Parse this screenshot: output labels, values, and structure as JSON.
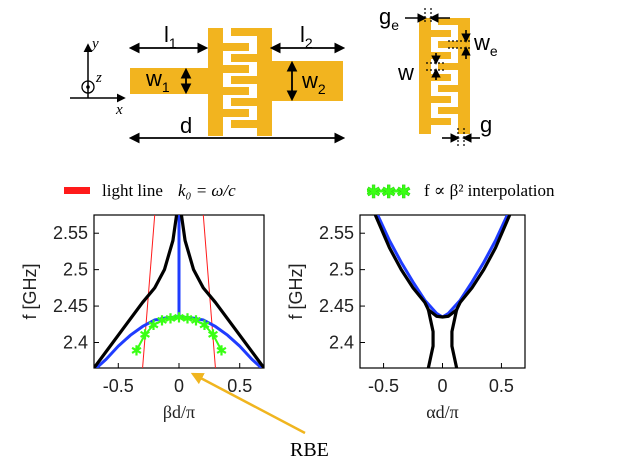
{
  "diagram": {
    "colors": {
      "metal": "#f2b41f",
      "blue": "#1f3cff",
      "black": "#000000",
      "red": "#ff1a1a",
      "green": "#39ff14",
      "arrow": "#f0b51f"
    },
    "unit_cell_labels": {
      "axis_y": "y",
      "axis_x": "x",
      "axis_z": "z",
      "l1_main": "l",
      "l1_sub": "1",
      "l2_main": "l",
      "l2_sub": "2",
      "w1_main": "w",
      "w1_sub": "1",
      "w2_main": "w",
      "w2_sub": "2",
      "d": "d"
    },
    "detail_labels": {
      "ge_main": "g",
      "ge_sub": "e",
      "we_main": "w",
      "we_sub": "e",
      "w": "w",
      "g": "g"
    },
    "legend": {
      "light_line_text": "light line",
      "light_line_formula": "k₀ = ω/c",
      "interp_formula": "f ∝ β² interpolation"
    },
    "annotation": {
      "rbe": "RBE"
    }
  },
  "chart_data": [
    {
      "type": "line",
      "xlabel": "βd/π",
      "ylabel": "f [GHz]",
      "xlim": [
        -0.7,
        0.7
      ],
      "ylim": [
        2.365,
        2.575
      ],
      "xticks": [
        -0.5,
        0,
        0.5
      ],
      "xtick_labels": [
        "-0.5",
        "0",
        "0.5"
      ],
      "yticks": [
        2.4,
        2.45,
        2.5,
        2.55
      ],
      "ytick_labels": [
        "2.4",
        "2.45",
        "2.5",
        "2.55"
      ],
      "series": [
        {
          "color": "#ff1a1a",
          "x": [
            -0.3,
            -0.2,
            0.2,
            0.3
          ],
          "y": [
            2.365,
            2.575,
            2.575,
            2.365
          ],
          "segments": [
            [
              0,
              1
            ],
            [
              2,
              3
            ]
          ]
        },
        {
          "color": "#1f3cff",
          "x": [
            -0.68,
            -0.6,
            -0.5,
            -0.4,
            -0.3,
            -0.2,
            -0.1,
            0,
            0.1,
            0.2,
            0.3,
            0.4,
            0.5,
            0.6,
            0.68
          ],
          "y": [
            2.365,
            2.377,
            2.395,
            2.41,
            2.422,
            2.431,
            2.434,
            2.435,
            2.434,
            2.431,
            2.422,
            2.41,
            2.395,
            2.377,
            2.365
          ]
        },
        {
          "color": "#1f3cff",
          "x": [
            0,
            0
          ],
          "y": [
            2.435,
            2.575
          ]
        },
        {
          "color": "#000000",
          "x": [
            -0.7,
            -0.5,
            -0.3,
            -0.2,
            -0.12,
            -0.05,
            -0.02
          ],
          "y": [
            2.365,
            2.41,
            2.455,
            2.475,
            2.5,
            2.54,
            2.575
          ]
        },
        {
          "color": "#000000",
          "x": [
            0.7,
            0.5,
            0.3,
            0.2,
            0.12,
            0.05,
            0.02
          ],
          "y": [
            2.365,
            2.41,
            2.455,
            2.475,
            2.5,
            2.54,
            2.575
          ]
        },
        {
          "color": "#39ff14",
          "marker": "*",
          "x": [
            -0.35,
            -0.28,
            -0.21,
            -0.14,
            -0.07,
            0,
            0.07,
            0.14,
            0.21,
            0.28,
            0.35
          ],
          "y": [
            2.389,
            2.411,
            2.424,
            2.43,
            2.433,
            2.434,
            2.433,
            2.43,
            2.424,
            2.411,
            2.389
          ]
        }
      ]
    },
    {
      "type": "line",
      "xlabel": "αd/π",
      "ylabel": "f [GHz]",
      "xlim": [
        -0.7,
        0.7
      ],
      "ylim": [
        2.365,
        2.575
      ],
      "xticks": [
        -0.5,
        0,
        0.5
      ],
      "xtick_labels": [
        "-0.5",
        "0",
        "0.5"
      ],
      "yticks": [
        2.4,
        2.45,
        2.5,
        2.55
      ],
      "ytick_labels": [
        "2.4",
        "2.45",
        "2.5",
        "2.55"
      ],
      "series": [
        {
          "color": "#1f3cff",
          "x": [
            -0.55,
            -0.45,
            -0.35,
            -0.25,
            -0.15,
            -0.05,
            0,
            0.05,
            0.15,
            0.25,
            0.35,
            0.45,
            0.55
          ],
          "y": [
            2.575,
            2.54,
            2.51,
            2.483,
            2.458,
            2.44,
            2.435,
            2.44,
            2.458,
            2.483,
            2.51,
            2.54,
            2.575
          ]
        },
        {
          "color": "#000000",
          "x": [
            -0.57,
            -0.45,
            -0.35,
            -0.25,
            -0.15,
            -0.12,
            -0.1,
            -0.08,
            -0.08,
            -0.1,
            -0.12
          ],
          "y": [
            2.575,
            2.53,
            2.5,
            2.475,
            2.455,
            2.445,
            2.43,
            2.415,
            2.395,
            2.38,
            2.365
          ]
        },
        {
          "color": "#000000",
          "x": [
            0.57,
            0.45,
            0.35,
            0.25,
            0.15,
            0.12,
            0.1,
            0.08,
            0.08,
            0.1,
            0.12
          ],
          "y": [
            2.575,
            2.53,
            2.5,
            2.475,
            2.455,
            2.445,
            2.43,
            2.415,
            2.395,
            2.38,
            2.365
          ]
        },
        {
          "color": "#000000",
          "x": [
            -0.12,
            -0.05,
            0,
            0.05,
            0.12
          ],
          "y": [
            2.445,
            2.436,
            2.435,
            2.436,
            2.445
          ]
        }
      ]
    }
  ]
}
